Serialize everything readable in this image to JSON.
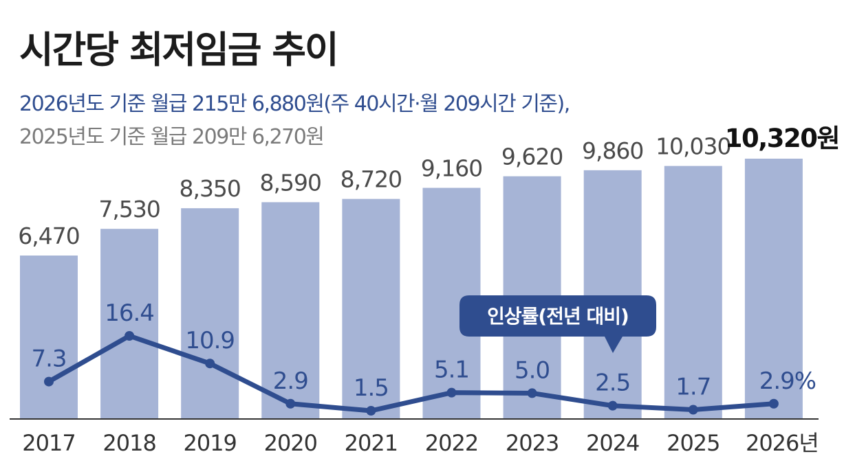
{
  "header": {
    "title": "시간당 최저임금 추이",
    "subtitle_2026": "2026년도 기준 월급 215만 6,880원(주 40시간·월 209시간 기준),",
    "subtitle_2025": "2025년도 기준 월급 209만 6,270원"
  },
  "chart_data": {
    "type": "bar",
    "title": "시간당 최저임금 추이",
    "categories": [
      "2017",
      "2018",
      "2019",
      "2020",
      "2021",
      "2022",
      "2023",
      "2024",
      "2025",
      "2026"
    ],
    "category_labels": [
      "2017",
      "2018",
      "2019",
      "2020",
      "2021",
      "2022",
      "2023",
      "2024",
      "2025",
      "2026년"
    ],
    "series": [
      {
        "name": "시간당 최저임금",
        "type": "bar",
        "unit": "원",
        "values": [
          6470,
          7530,
          8350,
          8590,
          8720,
          9160,
          9620,
          9860,
          10030,
          10320
        ],
        "labels": [
          "6,470",
          "7,530",
          "8,350",
          "8,590",
          "8,720",
          "9,160",
          "9,620",
          "9,860",
          "10,030",
          "10,320원"
        ]
      },
      {
        "name": "인상률(전년 대비)",
        "type": "line",
        "unit": "%",
        "values": [
          7.3,
          16.4,
          10.9,
          2.9,
          1.5,
          5.1,
          5.0,
          2.5,
          1.7,
          2.9
        ],
        "labels": [
          "7.3",
          "16.4",
          "10.9",
          "2.9",
          "1.5",
          "5.1",
          "5.0",
          "2.5",
          "1.7",
          "2.9%"
        ]
      }
    ],
    "legend": "인상률(전년 대비)",
    "xlabel": "",
    "ylabel": "",
    "grid": false,
    "colors": {
      "bar": "#a6b4d6",
      "line": "#2f4d8f",
      "label_blue": "#2f4d8f",
      "baseline": "#333333"
    }
  }
}
